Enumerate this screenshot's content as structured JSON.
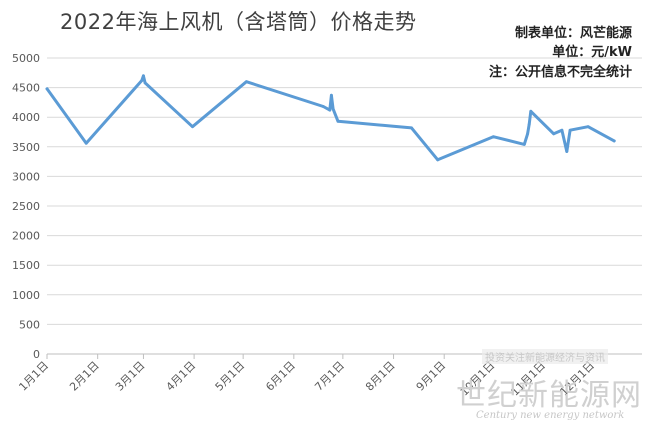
{
  "notes": {
    "source": "制表单位：风芒能源",
    "unit": "单位：元/kW",
    "disclaimer": "注：公开信息不完全统计"
  },
  "watermark": {
    "small_text": "投资关注新能源经济与资讯",
    "logo_text": "世纪新能源网",
    "sub_text": "Century new energy network"
  },
  "colors": {
    "line": "#5b9bd5",
    "grid": "#d9d9d9",
    "axis_text": "#595959",
    "title": "#404040"
  },
  "chart_data": {
    "type": "line",
    "title": "2022年海上风机（含塔筒）价格走势",
    "xlabel": "",
    "ylabel": "",
    "ylim": [
      0,
      5000
    ],
    "yticks": [
      0,
      500,
      1000,
      1500,
      2000,
      2500,
      3000,
      3500,
      4000,
      4500,
      5000
    ],
    "xlim": [
      0,
      364
    ],
    "grid": true,
    "legend": "none",
    "xticks": [
      {
        "x": 0,
        "label": "1月1日"
      },
      {
        "x": 31,
        "label": "2月1日"
      },
      {
        "x": 59,
        "label": "3月1日"
      },
      {
        "x": 90,
        "label": "4月1日"
      },
      {
        "x": 120,
        "label": "5月1日"
      },
      {
        "x": 151,
        "label": "6月1日"
      },
      {
        "x": 181,
        "label": "7月1日"
      },
      {
        "x": 212,
        "label": "8月1日"
      },
      {
        "x": 243,
        "label": "9月1日"
      },
      {
        "x": 273,
        "label": "10月1日"
      },
      {
        "x": 304,
        "label": "11月1日"
      },
      {
        "x": 334,
        "label": "12月1日"
      }
    ],
    "series": [
      {
        "values": [
          {
            "x": 0,
            "y": 4480
          },
          {
            "x": 24,
            "y": 3560
          },
          {
            "x": 58,
            "y": 4620
          },
          {
            "x": 59,
            "y": 4700
          },
          {
            "x": 60,
            "y": 4580
          },
          {
            "x": 89,
            "y": 3840
          },
          {
            "x": 122,
            "y": 4600
          },
          {
            "x": 169,
            "y": 4180
          },
          {
            "x": 173,
            "y": 4120
          },
          {
            "x": 174,
            "y": 4370
          },
          {
            "x": 175,
            "y": 4140
          },
          {
            "x": 178,
            "y": 3930
          },
          {
            "x": 223,
            "y": 3820
          },
          {
            "x": 239,
            "y": 3280
          },
          {
            "x": 273,
            "y": 3670
          },
          {
            "x": 292,
            "y": 3540
          },
          {
            "x": 294,
            "y": 3720
          },
          {
            "x": 295,
            "y": 3880
          },
          {
            "x": 296,
            "y": 4100
          },
          {
            "x": 310,
            "y": 3720
          },
          {
            "x": 315,
            "y": 3780
          },
          {
            "x": 318,
            "y": 3420
          },
          {
            "x": 320,
            "y": 3780
          },
          {
            "x": 331,
            "y": 3840
          },
          {
            "x": 347,
            "y": 3600
          }
        ]
      }
    ]
  }
}
